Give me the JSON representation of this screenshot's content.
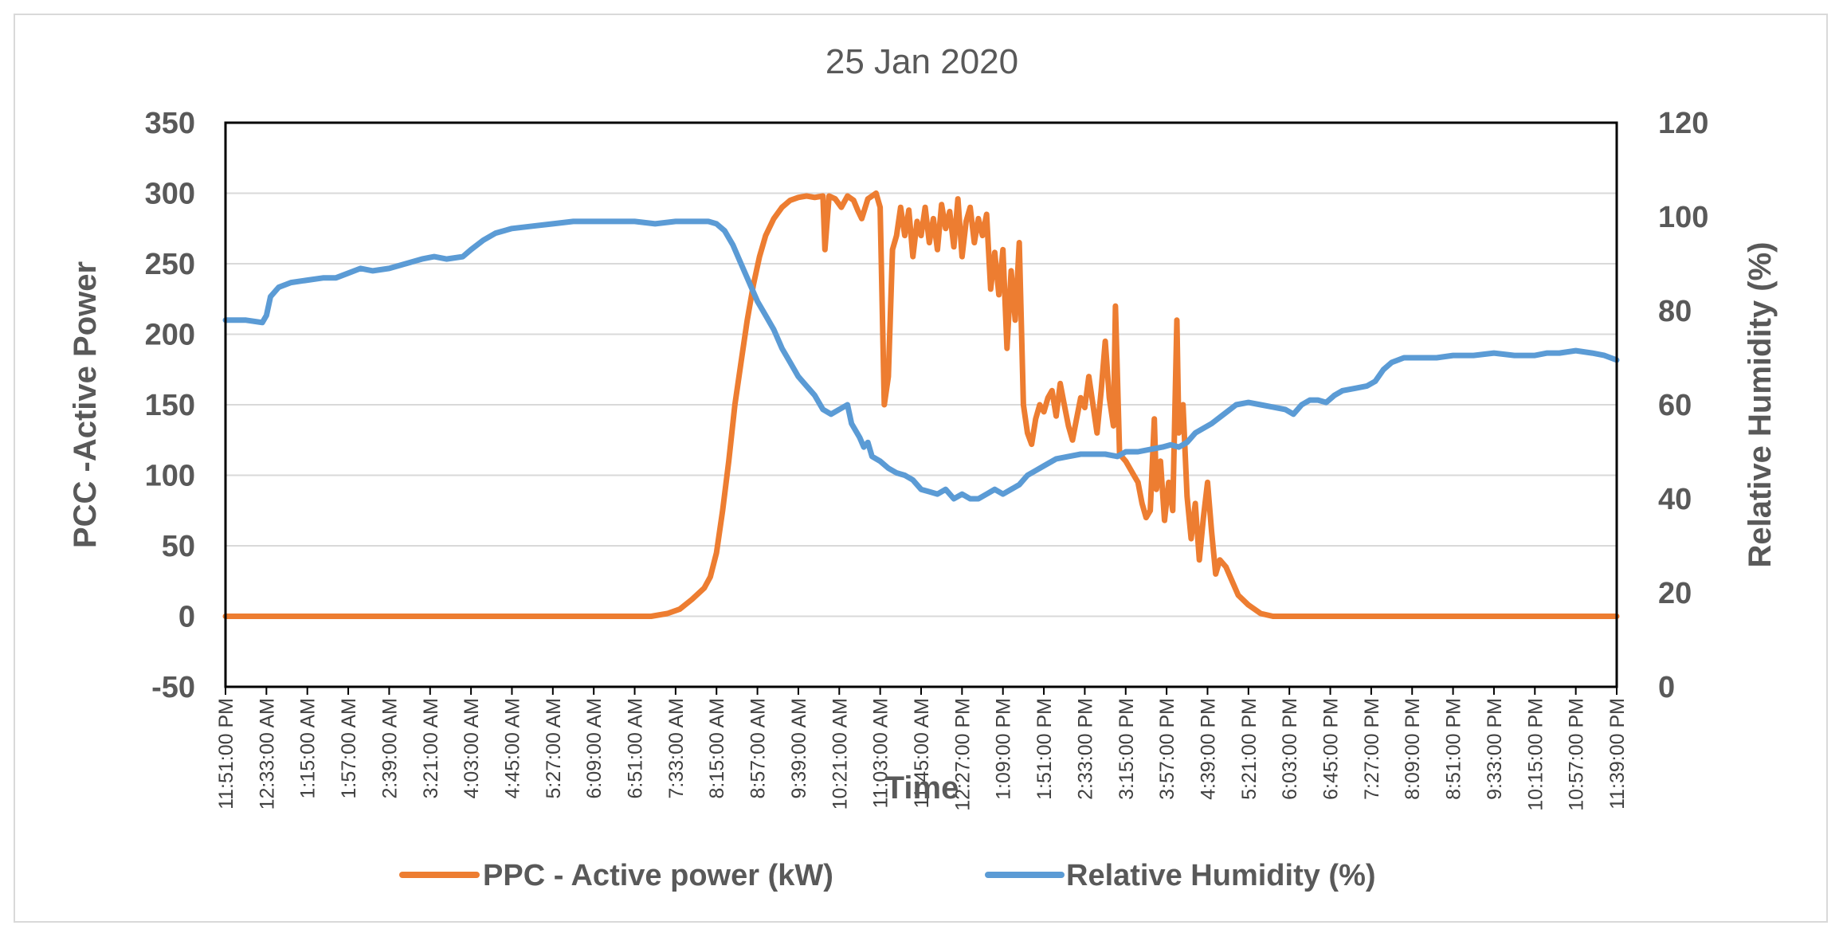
{
  "chart_data": {
    "type": "line",
    "title": "25 Jan 2020",
    "xlabel": "Time",
    "ylabel": "PCC -Active Power",
    "y2label": "Relative Humidity (%)",
    "ylim": [
      -50,
      350
    ],
    "y2lim": [
      0,
      120
    ],
    "yticks": [
      "350",
      "300",
      "250",
      "200",
      "150",
      "100",
      "50",
      "0",
      "-50"
    ],
    "y2ticks": [
      "120",
      "100",
      "80",
      "60",
      "40",
      "20",
      "0"
    ],
    "categories": [
      "11:51:00 PM",
      "12:33:00 AM",
      "1:15:00 AM",
      "1:57:00 AM",
      "2:39:00 AM",
      "3:21:00 AM",
      "4:03:00 AM",
      "4:45:00 AM",
      "5:27:00 AM",
      "6:09:00 AM",
      "6:51:00 AM",
      "7:33:00 AM",
      "8:15:00 AM",
      "8:57:00 AM",
      "9:39:00 AM",
      "10:21:00 AM",
      "11:03:00 AM",
      "11:45:00 AM",
      "12:27:00 PM",
      "1:09:00 PM",
      "1:51:00 PM",
      "2:33:00 PM",
      "3:15:00 PM",
      "3:57:00 PM",
      "4:39:00 PM",
      "5:21:00 PM",
      "6:03:00 PM",
      "6:45:00 PM",
      "7:27:00 PM",
      "8:09:00 PM",
      "8:51:00 PM",
      "9:33:00 PM",
      "10:15:00 PM",
      "10:57:00 PM",
      "11:39:00 PM"
    ],
    "grid": true,
    "legend_position": "bottom",
    "series": [
      {
        "name": "PPC - Active power (kW)",
        "axis": "left",
        "color": "#ed7d31",
        "points": [
          [
            0,
            0
          ],
          [
            10.4,
            0
          ],
          [
            10.8,
            2
          ],
          [
            11.1,
            5
          ],
          [
            11.4,
            12
          ],
          [
            11.7,
            20
          ],
          [
            11.85,
            28
          ],
          [
            12.0,
            45
          ],
          [
            12.15,
            75
          ],
          [
            12.3,
            110
          ],
          [
            12.45,
            150
          ],
          [
            12.6,
            180
          ],
          [
            12.75,
            210
          ],
          [
            12.9,
            235
          ],
          [
            13.05,
            255
          ],
          [
            13.2,
            270
          ],
          [
            13.4,
            282
          ],
          [
            13.6,
            290
          ],
          [
            13.8,
            295
          ],
          [
            14.0,
            297
          ],
          [
            14.2,
            298
          ],
          [
            14.4,
            297
          ],
          [
            14.6,
            298
          ],
          [
            14.65,
            260
          ],
          [
            14.75,
            298
          ],
          [
            14.9,
            296
          ],
          [
            15.05,
            290
          ],
          [
            15.2,
            298
          ],
          [
            15.35,
            295
          ],
          [
            15.45,
            288
          ],
          [
            15.55,
            282
          ],
          [
            15.7,
            296
          ],
          [
            15.9,
            300
          ],
          [
            16.0,
            290
          ],
          [
            16.1,
            150
          ],
          [
            16.2,
            170
          ],
          [
            16.3,
            260
          ],
          [
            16.4,
            270
          ],
          [
            16.5,
            290
          ],
          [
            16.6,
            270
          ],
          [
            16.7,
            288
          ],
          [
            16.8,
            255
          ],
          [
            16.9,
            280
          ],
          [
            17.0,
            270
          ],
          [
            17.1,
            290
          ],
          [
            17.2,
            265
          ],
          [
            17.3,
            282
          ],
          [
            17.4,
            260
          ],
          [
            17.5,
            292
          ],
          [
            17.6,
            275
          ],
          [
            17.7,
            287
          ],
          [
            17.8,
            262
          ],
          [
            17.9,
            296
          ],
          [
            18.0,
            255
          ],
          [
            18.1,
            280
          ],
          [
            18.2,
            290
          ],
          [
            18.3,
            265
          ],
          [
            18.4,
            282
          ],
          [
            18.5,
            270
          ],
          [
            18.6,
            285
          ],
          [
            18.7,
            232
          ],
          [
            18.8,
            258
          ],
          [
            18.9,
            228
          ],
          [
            19.0,
            260
          ],
          [
            19.1,
            190
          ],
          [
            19.2,
            245
          ],
          [
            19.3,
            210
          ],
          [
            19.4,
            265
          ],
          [
            19.5,
            150
          ],
          [
            19.6,
            130
          ],
          [
            19.7,
            122
          ],
          [
            19.8,
            140
          ],
          [
            19.9,
            150
          ],
          [
            20.0,
            145
          ],
          [
            20.1,
            155
          ],
          [
            20.2,
            160
          ],
          [
            20.3,
            142
          ],
          [
            20.4,
            165
          ],
          [
            20.5,
            150
          ],
          [
            20.6,
            135
          ],
          [
            20.7,
            125
          ],
          [
            20.8,
            140
          ],
          [
            20.9,
            155
          ],
          [
            21.0,
            148
          ],
          [
            21.1,
            170
          ],
          [
            21.2,
            150
          ],
          [
            21.3,
            130
          ],
          [
            21.4,
            160
          ],
          [
            21.5,
            195
          ],
          [
            21.6,
            155
          ],
          [
            21.7,
            135
          ],
          [
            21.75,
            220
          ],
          [
            21.85,
            115
          ],
          [
            22.0,
            110
          ],
          [
            22.1,
            105
          ],
          [
            22.2,
            100
          ],
          [
            22.3,
            95
          ],
          [
            22.4,
            80
          ],
          [
            22.5,
            70
          ],
          [
            22.6,
            75
          ],
          [
            22.7,
            140
          ],
          [
            22.75,
            90
          ],
          [
            22.85,
            110
          ],
          [
            22.95,
            68
          ],
          [
            23.05,
            95
          ],
          [
            23.15,
            75
          ],
          [
            23.25,
            210
          ],
          [
            23.3,
            130
          ],
          [
            23.4,
            150
          ],
          [
            23.5,
            85
          ],
          [
            23.6,
            55
          ],
          [
            23.7,
            80
          ],
          [
            23.8,
            40
          ],
          [
            23.9,
            70
          ],
          [
            24.0,
            95
          ],
          [
            24.1,
            60
          ],
          [
            24.2,
            30
          ],
          [
            24.3,
            40
          ],
          [
            24.45,
            35
          ],
          [
            24.6,
            25
          ],
          [
            24.75,
            15
          ],
          [
            25.0,
            8
          ],
          [
            25.3,
            2
          ],
          [
            25.6,
            0
          ],
          [
            34,
            0
          ]
        ]
      },
      {
        "name": "Relative Humidity (%)",
        "axis": "right",
        "color": "#5b9bd5",
        "points": [
          [
            0,
            78
          ],
          [
            0.5,
            78
          ],
          [
            0.9,
            77.5
          ],
          [
            1.0,
            79
          ],
          [
            1.1,
            83
          ],
          [
            1.3,
            85
          ],
          [
            1.6,
            86
          ],
          [
            2.0,
            86.5
          ],
          [
            2.4,
            87
          ],
          [
            2.7,
            87
          ],
          [
            3.0,
            88
          ],
          [
            3.3,
            89
          ],
          [
            3.6,
            88.5
          ],
          [
            4.0,
            89
          ],
          [
            4.4,
            90
          ],
          [
            4.8,
            91
          ],
          [
            5.1,
            91.5
          ],
          [
            5.4,
            91
          ],
          [
            5.8,
            91.5
          ],
          [
            6.0,
            93
          ],
          [
            6.3,
            95
          ],
          [
            6.6,
            96.5
          ],
          [
            7.0,
            97.5
          ],
          [
            7.5,
            98
          ],
          [
            8.0,
            98.5
          ],
          [
            8.5,
            99
          ],
          [
            9.0,
            99
          ],
          [
            9.5,
            99
          ],
          [
            10.0,
            99
          ],
          [
            10.5,
            98.5
          ],
          [
            11.0,
            99
          ],
          [
            11.5,
            99
          ],
          [
            11.8,
            99
          ],
          [
            12.0,
            98.5
          ],
          [
            12.2,
            97
          ],
          [
            12.4,
            94
          ],
          [
            12.6,
            90
          ],
          [
            12.8,
            86
          ],
          [
            13.0,
            82
          ],
          [
            13.2,
            79
          ],
          [
            13.4,
            76
          ],
          [
            13.6,
            72
          ],
          [
            13.8,
            69
          ],
          [
            14.0,
            66
          ],
          [
            14.2,
            64
          ],
          [
            14.4,
            62
          ],
          [
            14.6,
            59
          ],
          [
            14.8,
            58
          ],
          [
            15.0,
            59
          ],
          [
            15.2,
            60
          ],
          [
            15.3,
            56
          ],
          [
            15.5,
            53
          ],
          [
            15.6,
            51
          ],
          [
            15.7,
            52
          ],
          [
            15.8,
            49
          ],
          [
            16.0,
            48
          ],
          [
            16.2,
            46.5
          ],
          [
            16.4,
            45.5
          ],
          [
            16.6,
            45
          ],
          [
            16.8,
            44
          ],
          [
            17.0,
            42
          ],
          [
            17.2,
            41.5
          ],
          [
            17.4,
            41
          ],
          [
            17.6,
            42
          ],
          [
            17.8,
            40
          ],
          [
            18.0,
            41
          ],
          [
            18.2,
            40
          ],
          [
            18.4,
            40
          ],
          [
            18.6,
            41
          ],
          [
            18.8,
            42
          ],
          [
            19.0,
            41
          ],
          [
            19.2,
            42
          ],
          [
            19.4,
            43
          ],
          [
            19.6,
            45
          ],
          [
            19.8,
            46
          ],
          [
            20.0,
            47
          ],
          [
            20.3,
            48.5
          ],
          [
            20.6,
            49
          ],
          [
            20.9,
            49.5
          ],
          [
            21.2,
            49.5
          ],
          [
            21.5,
            49.5
          ],
          [
            21.8,
            49
          ],
          [
            22.0,
            50
          ],
          [
            22.3,
            50
          ],
          [
            22.6,
            50.5
          ],
          [
            22.9,
            51
          ],
          [
            23.1,
            51.5
          ],
          [
            23.3,
            51
          ],
          [
            23.5,
            52
          ],
          [
            23.7,
            54
          ],
          [
            23.9,
            55
          ],
          [
            24.1,
            56
          ],
          [
            24.4,
            58
          ],
          [
            24.7,
            60
          ],
          [
            25.0,
            60.5
          ],
          [
            25.3,
            60
          ],
          [
            25.6,
            59.5
          ],
          [
            25.9,
            59
          ],
          [
            26.1,
            58
          ],
          [
            26.3,
            60
          ],
          [
            26.5,
            61
          ],
          [
            26.7,
            61
          ],
          [
            26.9,
            60.5
          ],
          [
            27.1,
            62
          ],
          [
            27.3,
            63
          ],
          [
            27.6,
            63.5
          ],
          [
            27.9,
            64
          ],
          [
            28.1,
            65
          ],
          [
            28.3,
            67.5
          ],
          [
            28.5,
            69
          ],
          [
            28.8,
            70
          ],
          [
            29.2,
            70
          ],
          [
            29.6,
            70
          ],
          [
            30.0,
            70.5
          ],
          [
            30.5,
            70.5
          ],
          [
            31.0,
            71
          ],
          [
            31.5,
            70.5
          ],
          [
            32.0,
            70.5
          ],
          [
            32.3,
            71
          ],
          [
            32.6,
            71
          ],
          [
            33.0,
            71.5
          ],
          [
            33.4,
            71
          ],
          [
            33.7,
            70.5
          ],
          [
            34.0,
            69.5
          ]
        ]
      }
    ]
  }
}
